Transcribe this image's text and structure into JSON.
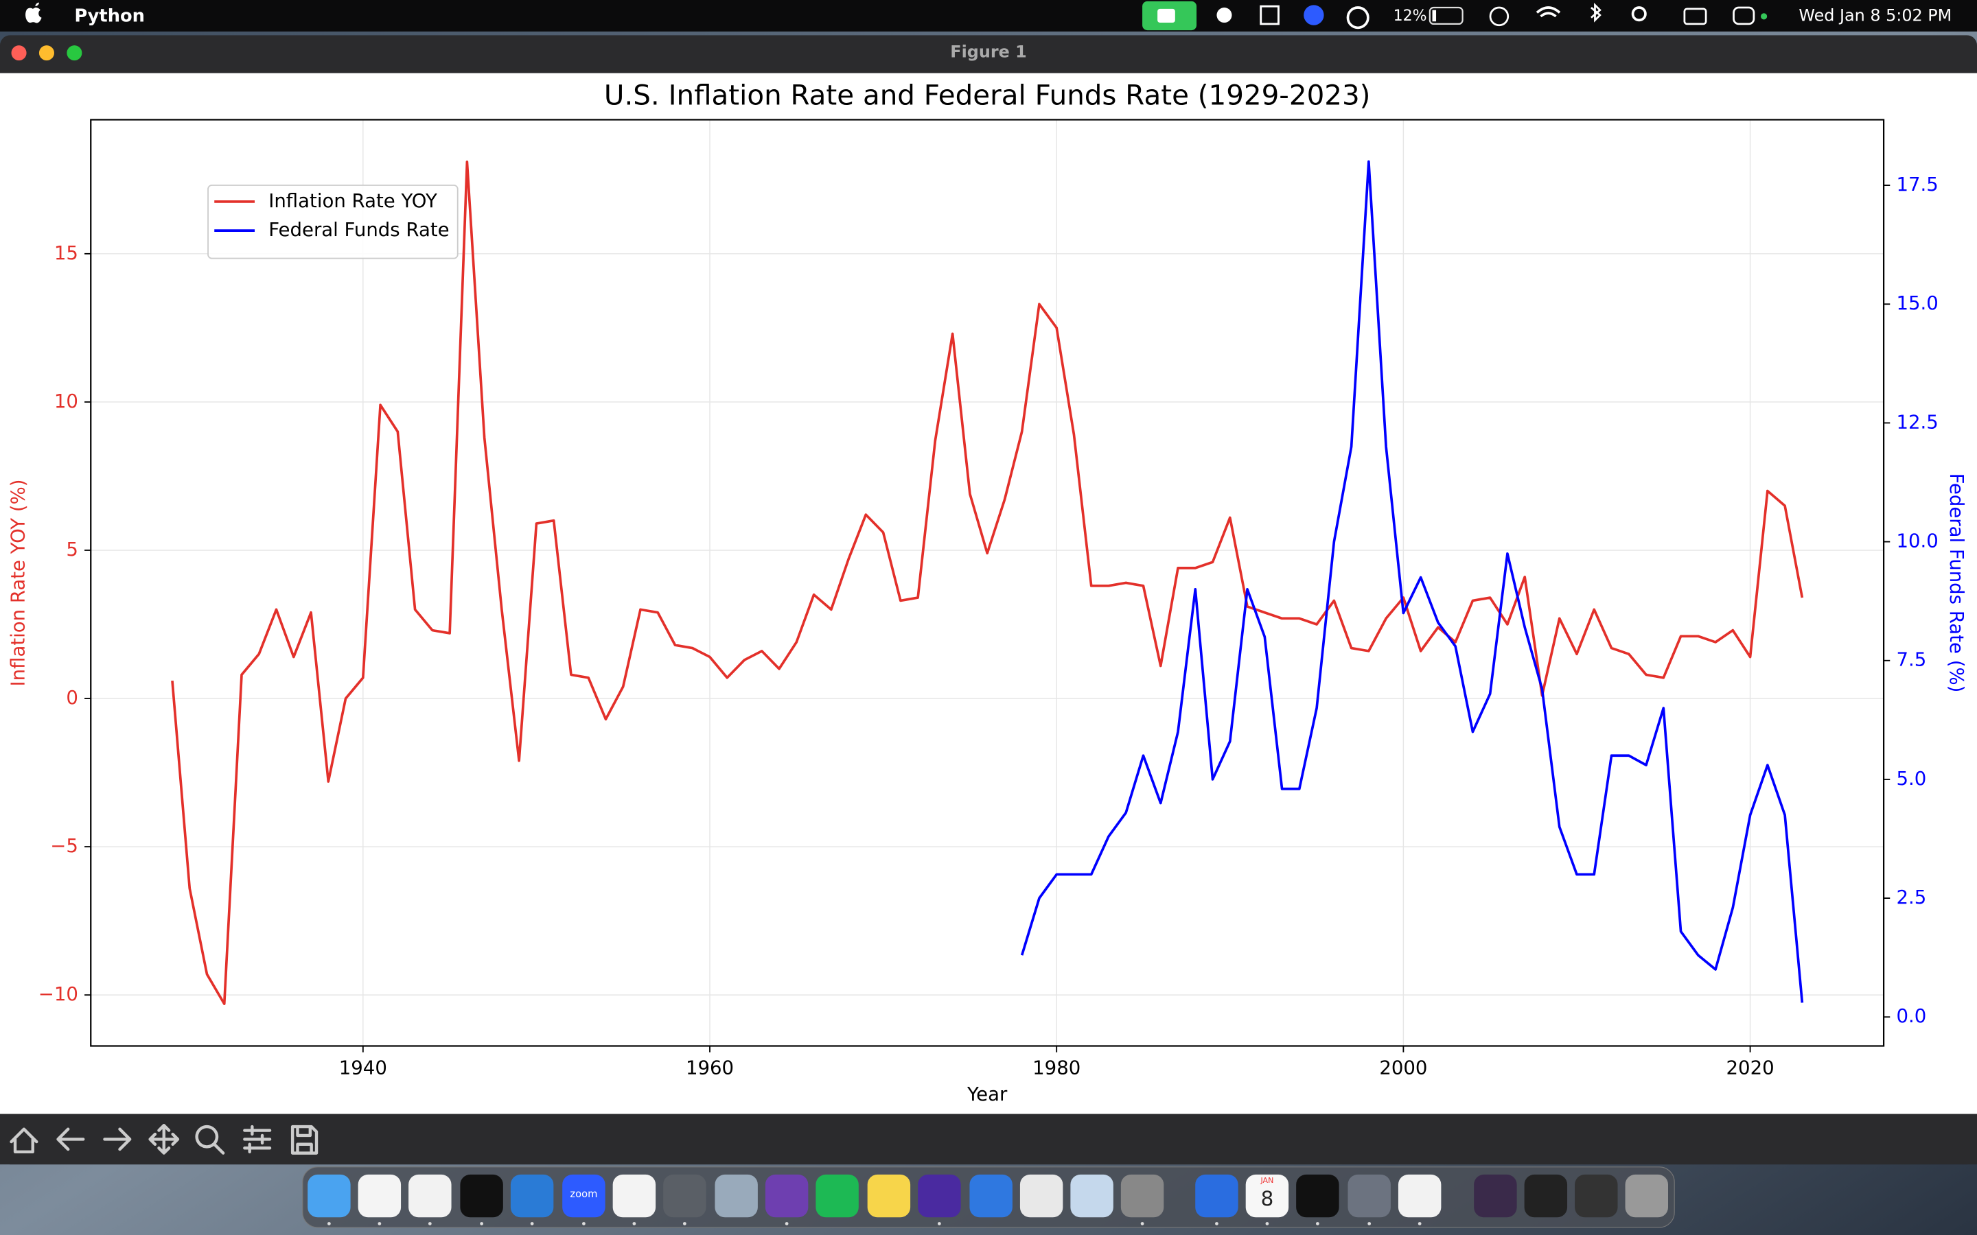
{
  "menu_bar": {
    "app": "Python",
    "battery": "12%",
    "clock": "Wed Jan 8  5:02 PM"
  },
  "window": {
    "title": "Figure 1"
  },
  "dock": {
    "zoom_label": "zoom",
    "calendar_month": "JAN",
    "calendar_day": "8"
  },
  "chart_data": {
    "type": "line",
    "title": "U.S. Inflation Rate and Federal Funds Rate (1929-2023)",
    "xlabel": "Year",
    "ylabel": "Inflation Rate YOY (%)",
    "y2label": "Federal Funds Rate (%)",
    "x": [
      1929,
      1930,
      1931,
      1932,
      1933,
      1934,
      1935,
      1936,
      1937,
      1938,
      1939,
      1940,
      1941,
      1942,
      1943,
      1944,
      1945,
      1946,
      1947,
      1948,
      1949,
      1950,
      1951,
      1952,
      1953,
      1954,
      1955,
      1956,
      1957,
      1958,
      1959,
      1960,
      1961,
      1962,
      1963,
      1964,
      1965,
      1966,
      1967,
      1968,
      1969,
      1970,
      1971,
      1972,
      1973,
      1974,
      1975,
      1976,
      1977,
      1978,
      1979,
      1980,
      1981,
      1982,
      1983,
      1984,
      1985,
      1986,
      1987,
      1988,
      1989,
      1990,
      1991,
      1992,
      1993,
      1994,
      1995,
      1996,
      1997,
      1998,
      1999,
      2000,
      2001,
      2002,
      2003,
      2004,
      2005,
      2006,
      2007,
      2008,
      2009,
      2010,
      2011,
      2012,
      2013,
      2014,
      2015,
      2016,
      2017,
      2018,
      2019,
      2020,
      2021,
      2022,
      2023
    ],
    "series": [
      {
        "name": "Inflation Rate YOY",
        "color": "#e3302a",
        "axis": "y",
        "values": [
          0.6,
          -6.4,
          -9.3,
          -10.3,
          0.8,
          1.5,
          3.0,
          1.4,
          2.9,
          -2.8,
          0.0,
          0.7,
          9.9,
          9.0,
          3.0,
          2.3,
          2.2,
          18.1,
          8.8,
          3.0,
          -2.1,
          5.9,
          6.0,
          0.8,
          0.7,
          -0.7,
          0.4,
          3.0,
          2.9,
          1.8,
          1.7,
          1.4,
          0.7,
          1.3,
          1.6,
          1.0,
          1.9,
          3.5,
          3.0,
          4.7,
          6.2,
          5.6,
          3.3,
          3.4,
          8.7,
          12.3,
          6.9,
          4.9,
          6.7,
          9.0,
          13.3,
          12.5,
          8.9,
          3.8,
          3.8,
          3.9,
          3.8,
          1.1,
          4.4,
          4.4,
          4.6,
          6.1,
          3.1,
          2.9,
          2.7,
          2.7,
          2.5,
          3.3,
          1.7,
          1.6,
          2.7,
          3.4,
          1.6,
          2.4,
          1.9,
          3.3,
          3.4,
          2.5,
          4.1,
          0.1,
          2.7,
          1.5,
          3.0,
          1.7,
          1.5,
          0.8,
          0.7,
          2.1,
          2.1,
          1.9,
          2.3,
          1.4,
          7.0,
          6.5,
          3.4
        ]
      },
      {
        "name": "Federal Funds Rate",
        "color": "#0000ff",
        "axis": "y2",
        "values": [
          null,
          null,
          null,
          null,
          null,
          null,
          null,
          null,
          null,
          null,
          null,
          null,
          null,
          null,
          null,
          null,
          null,
          null,
          null,
          null,
          null,
          null,
          null,
          null,
          null,
          null,
          null,
          null,
          null,
          null,
          null,
          null,
          null,
          null,
          null,
          null,
          null,
          null,
          null,
          null,
          null,
          null,
          null,
          null,
          null,
          null,
          null,
          null,
          null,
          1.3,
          2.5,
          3.0,
          3.0,
          3.0,
          3.8,
          4.3,
          5.5,
          4.5,
          6.0,
          9.0,
          5.0,
          5.8,
          9.0,
          8.0,
          4.8,
          4.8,
          6.5,
          10.0,
          12.0,
          18.0,
          12.0,
          8.5,
          9.25,
          8.3,
          7.8,
          6.0,
          6.8,
          9.75,
          8.2,
          6.9,
          4.0,
          3.0,
          3.0,
          5.5,
          5.5,
          5.3,
          6.5,
          1.8,
          1.3,
          1.0,
          2.3,
          4.25,
          5.3,
          4.25,
          0.3
        ]
      }
    ],
    "xlim": [
      1924.3,
      2027.7
    ],
    "xticks": [
      1940,
      1960,
      1980,
      2000,
      2020
    ],
    "ylim": [
      -11.72,
      19.52
    ],
    "yticks": [
      {
        "value": -10,
        "label": "−10"
      },
      {
        "value": -5,
        "label": "−5"
      },
      0,
      5,
      10,
      15
    ],
    "y2lim": [
      -0.61,
      18.88
    ],
    "y2ticks": [
      {
        "value": 0,
        "label": "0.0"
      },
      {
        "value": 2.5,
        "label": "2.5"
      },
      {
        "value": 5,
        "label": "5.0"
      },
      {
        "value": 7.5,
        "label": "7.5"
      },
      {
        "value": 10,
        "label": "10.0"
      },
      {
        "value": 12.5,
        "label": "12.5"
      },
      {
        "value": 15,
        "label": "15.0"
      },
      {
        "value": 17.5,
        "label": "17.5"
      }
    ],
    "grid": true,
    "legend": "upper left"
  }
}
